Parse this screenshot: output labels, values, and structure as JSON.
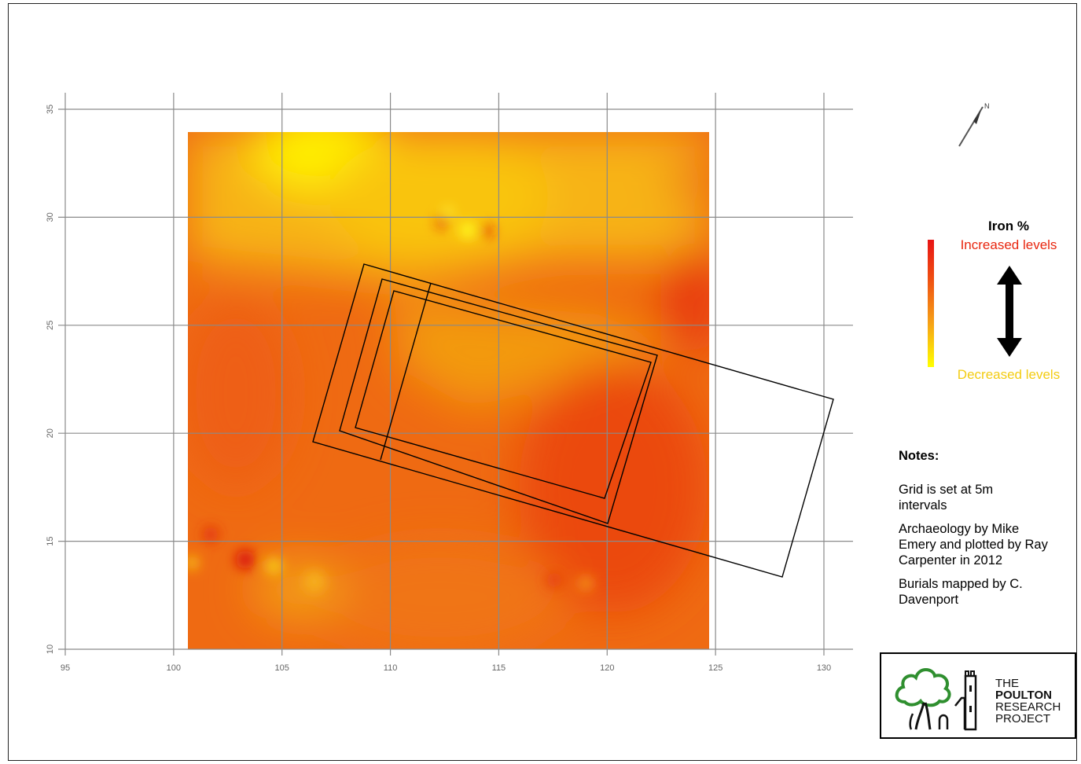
{
  "map": {
    "x_ticks": [
      "95",
      "100",
      "105",
      "110",
      "115",
      "120",
      "125",
      "130"
    ],
    "y_ticks": [
      "10",
      "15",
      "20",
      "25",
      "30",
      "35"
    ],
    "x_range": [
      95,
      130
    ],
    "y_range": [
      10,
      35
    ],
    "grid_interval_m": 5,
    "colors": {
      "high": "#e81414",
      "mid": "#f2920f",
      "low": "#ffff00",
      "grid": "#8a8a8a",
      "outline": "#000000"
    }
  },
  "north_arrow": {
    "label": "N",
    "icon": "north-arrow-icon"
  },
  "legend": {
    "title": "Iron %",
    "high_label": "Increased levels",
    "low_label": "Decreased levels",
    "high_color": "#e8260f",
    "low_color": "#f3cc12",
    "arrow_icon": "double-arrow-icon"
  },
  "notes": {
    "heading": "Notes:",
    "items": [
      "Grid is set at 5m intervals",
      "Archaeology by Mike Emery and plotted by Ray Carpenter in 2012",
      "Burials mapped by C. Davenport"
    ]
  },
  "logo": {
    "line1": "THE",
    "line2": "POULTON",
    "line3": "RESEARCH",
    "line4": "PROJECT",
    "icons": [
      "tree-icon",
      "church-tower-icon"
    ]
  }
}
